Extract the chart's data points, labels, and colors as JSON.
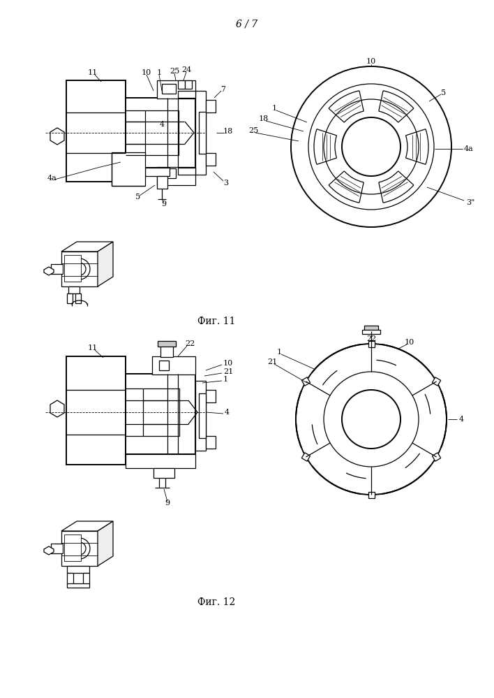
{
  "title": "6 / 7",
  "fig11_label": "Фиг. 11",
  "fig12_label": "Фиг. 12",
  "bg_color": "#ffffff",
  "line_color": "#000000",
  "fig_width": 7.08,
  "fig_height": 9.99,
  "dpi": 100
}
